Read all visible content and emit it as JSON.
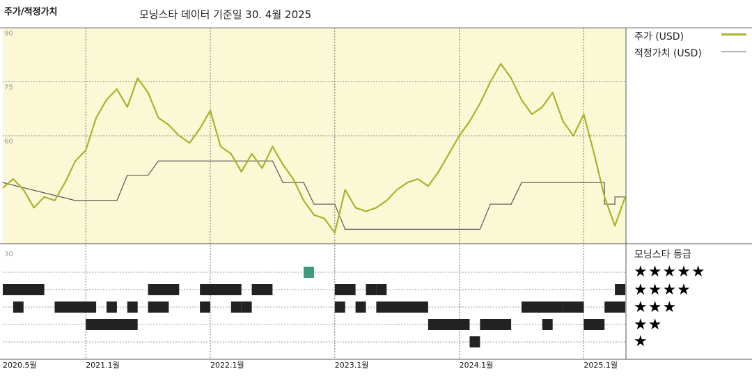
{
  "header": {
    "title": "주가/적정가치",
    "subtitle": "모닝스타 데이터 기준일 30. 4월 2025"
  },
  "legend": {
    "price": "주가 (USD)",
    "fair": "적정가치 (USD)",
    "rating": "모닝스타 등급"
  },
  "stars": [
    "★★★★★",
    "★★★★",
    "★★★",
    "★★",
    "★"
  ],
  "colors": {
    "price_line": "#aab22a",
    "fair_line": "#555555",
    "plot_bg": "#fbf8d6",
    "rating_bar": "#222222",
    "rating_highlight": "#3d9a7e"
  },
  "chart_data": {
    "type": "line",
    "ylim": [
      30,
      90
    ],
    "yticks": [
      30,
      60,
      75,
      90
    ],
    "xlim": [
      "2020-05",
      "2025-05"
    ],
    "xticks": [
      "2020.5월",
      "2021.1월",
      "2022.1월",
      "2023.1월",
      "2024.1월",
      "2025.1월"
    ],
    "series": [
      {
        "name": "주가 (USD)",
        "points": [
          [
            "2020-05",
            45.5
          ],
          [
            "2020-06",
            48
          ],
          [
            "2020-07",
            45
          ],
          [
            "2020-08",
            40
          ],
          [
            "2020-09",
            43
          ],
          [
            "2020-10",
            42
          ],
          [
            "2020-11",
            47
          ],
          [
            "2020-12",
            53
          ],
          [
            "2021-01",
            56
          ],
          [
            "2021-02",
            65
          ],
          [
            "2021-03",
            70
          ],
          [
            "2021-04",
            73
          ],
          [
            "2021-05",
            68
          ],
          [
            "2021-06",
            76
          ],
          [
            "2021-07",
            72
          ],
          [
            "2021-08",
            65
          ],
          [
            "2021-09",
            63
          ],
          [
            "2021-10",
            60
          ],
          [
            "2021-11",
            58
          ],
          [
            "2021-12",
            62
          ],
          [
            "2022-01",
            67
          ],
          [
            "2022-02",
            57
          ],
          [
            "2022-03",
            55
          ],
          [
            "2022-04",
            50
          ],
          [
            "2022-05",
            55
          ],
          [
            "2022-06",
            51
          ],
          [
            "2022-07",
            57
          ],
          [
            "2022-08",
            52
          ],
          [
            "2022-09",
            48
          ],
          [
            "2022-10",
            42
          ],
          [
            "2022-11",
            38
          ],
          [
            "2022-12",
            37
          ],
          [
            "2023-01",
            33
          ],
          [
            "2023-02",
            45
          ],
          [
            "2023-03",
            40
          ],
          [
            "2023-04",
            39
          ],
          [
            "2023-05",
            40
          ],
          [
            "2023-06",
            42
          ],
          [
            "2023-07",
            45
          ],
          [
            "2023-08",
            47
          ],
          [
            "2023-09",
            48
          ],
          [
            "2023-10",
            46
          ],
          [
            "2023-11",
            50
          ],
          [
            "2023-12",
            55
          ],
          [
            "2024-01",
            60
          ],
          [
            "2024-02",
            64
          ],
          [
            "2024-03",
            69
          ],
          [
            "2024-04",
            75
          ],
          [
            "2024-05",
            80
          ],
          [
            "2024-06",
            76
          ],
          [
            "2024-07",
            70
          ],
          [
            "2024-08",
            66
          ],
          [
            "2024-09",
            68
          ],
          [
            "2024-10",
            72
          ],
          [
            "2024-11",
            64
          ],
          [
            "2024-12",
            60
          ],
          [
            "2025-01",
            66
          ],
          [
            "2025-02",
            55
          ],
          [
            "2025-03",
            43
          ],
          [
            "2025-04",
            35
          ],
          [
            "2025-05",
            43
          ]
        ]
      },
      {
        "name": "적정가치 (USD)",
        "points": [
          [
            "2020-05",
            47
          ],
          [
            "2020-12",
            42
          ],
          [
            "2021-04",
            42
          ],
          [
            "2021-05",
            49
          ],
          [
            "2021-07",
            49
          ],
          [
            "2021-08",
            53
          ],
          [
            "2022-07",
            53
          ],
          [
            "2022-08",
            47
          ],
          [
            "2022-10",
            47
          ],
          [
            "2022-11",
            41
          ],
          [
            "2023-01",
            41
          ],
          [
            "2023-02",
            34
          ],
          [
            "2024-03",
            34
          ],
          [
            "2024-04",
            41
          ],
          [
            "2024-06",
            41
          ],
          [
            "2024-07",
            47
          ],
          [
            "2025-03",
            47
          ],
          [
            "2025-03",
            41
          ],
          [
            "2025-04",
            41
          ],
          [
            "2025-04",
            43
          ],
          [
            "2025-05",
            43
          ]
        ]
      }
    ],
    "rating_history": [
      {
        "stars": 5,
        "segments": [
          [
            "2022-10",
            "2022-11"
          ]
        ]
      },
      {
        "stars": 4,
        "segments": [
          [
            "2020-05",
            "2020-09"
          ],
          [
            "2021-07",
            "2021-10"
          ],
          [
            "2021-12",
            "2022-04"
          ],
          [
            "2022-05",
            "2022-07"
          ],
          [
            "2023-01",
            "2023-03"
          ],
          [
            "2023-04",
            "2023-05"
          ],
          [
            "2023-05",
            "2023-06"
          ],
          [
            "2025-04",
            "2025-05"
          ]
        ]
      },
      {
        "stars": 3,
        "segments": [
          [
            "2020-06",
            "2020-07"
          ],
          [
            "2020-10",
            "2021-02"
          ],
          [
            "2021-03",
            "2021-04"
          ],
          [
            "2021-05",
            "2021-06"
          ],
          [
            "2021-07",
            "2021-09"
          ],
          [
            "2021-12",
            "2022-01"
          ],
          [
            "2022-03",
            "2022-04"
          ],
          [
            "2022-04",
            "2022-05"
          ],
          [
            "2023-01",
            "2023-02"
          ],
          [
            "2023-03",
            "2023-04"
          ],
          [
            "2023-05",
            "2023-10"
          ],
          [
            "2024-07",
            "2024-11"
          ],
          [
            "2024-11",
            "2025-01"
          ],
          [
            "2025-03",
            "2025-05"
          ]
        ]
      },
      {
        "stars": 2,
        "segments": [
          [
            "2021-01",
            "2021-03"
          ],
          [
            "2021-03",
            "2021-06"
          ],
          [
            "2023-10",
            "2024-02"
          ],
          [
            "2024-03",
            "2024-06"
          ],
          [
            "2024-09",
            "2024-10"
          ],
          [
            "2025-01",
            "2025-03"
          ]
        ]
      },
      {
        "stars": 1,
        "segments": [
          [
            "2024-02",
            "2024-03"
          ]
        ]
      }
    ]
  }
}
